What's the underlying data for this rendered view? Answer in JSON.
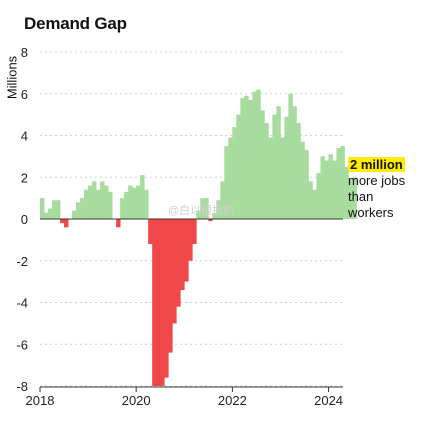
{
  "chart_data": {
    "type": "bar",
    "title": "Demand Gap",
    "ylabel": "Millions",
    "xlabel": "",
    "ylim": [
      -8,
      8
    ],
    "yticks": [
      -8,
      -6,
      -4,
      -2,
      0,
      2,
      4,
      6,
      8
    ],
    "xlim": [
      2018.0,
      2024.3
    ],
    "xticks": [
      "2018",
      "2020",
      "2022",
      "2024"
    ],
    "grid": "horizontal dashed",
    "colors": {
      "positive": "#a8dc9e",
      "negative": "#f04848"
    },
    "annotation": {
      "highlight": "2 million",
      "text": [
        "more jobs",
        "than",
        "workers"
      ]
    },
    "watermark": "@白以银找抓",
    "series": [
      {
        "start": 2018.0,
        "step_years": 0.0833,
        "values": [
          1.0,
          0.3,
          0.5,
          0.9,
          0.9,
          -0.2,
          -0.4,
          0.0,
          0.4,
          0.8,
          1.0,
          1.4,
          1.6,
          1.8,
          1.4,
          1.8,
          1.6,
          1.3,
          0.0,
          -0.4,
          1.0,
          1.3,
          1.6,
          1.5,
          1.6,
          2.1,
          1.4,
          -1.2,
          -8.0,
          -8.0,
          -8.0,
          -7.6,
          -6.4,
          -5.0,
          -4.2,
          -3.4,
          -3.0,
          -2.0,
          -1.2,
          0.4,
          1.0,
          1.0,
          -0.1,
          0.3,
          0.9,
          1.8,
          3.5,
          3.9,
          4.4,
          5.0,
          5.8,
          5.9,
          5.7,
          6.1,
          6.2,
          5.2,
          4.6,
          3.9,
          5.0,
          5.4,
          3.9,
          4.9,
          6.0,
          5.4,
          4.6,
          3.7,
          3.3,
          1.8,
          1.4,
          2.2,
          3.0,
          2.8,
          3.1,
          2.8,
          3.4,
          3.5,
          2.5,
          1.9,
          2.0
        ]
      }
    ]
  }
}
